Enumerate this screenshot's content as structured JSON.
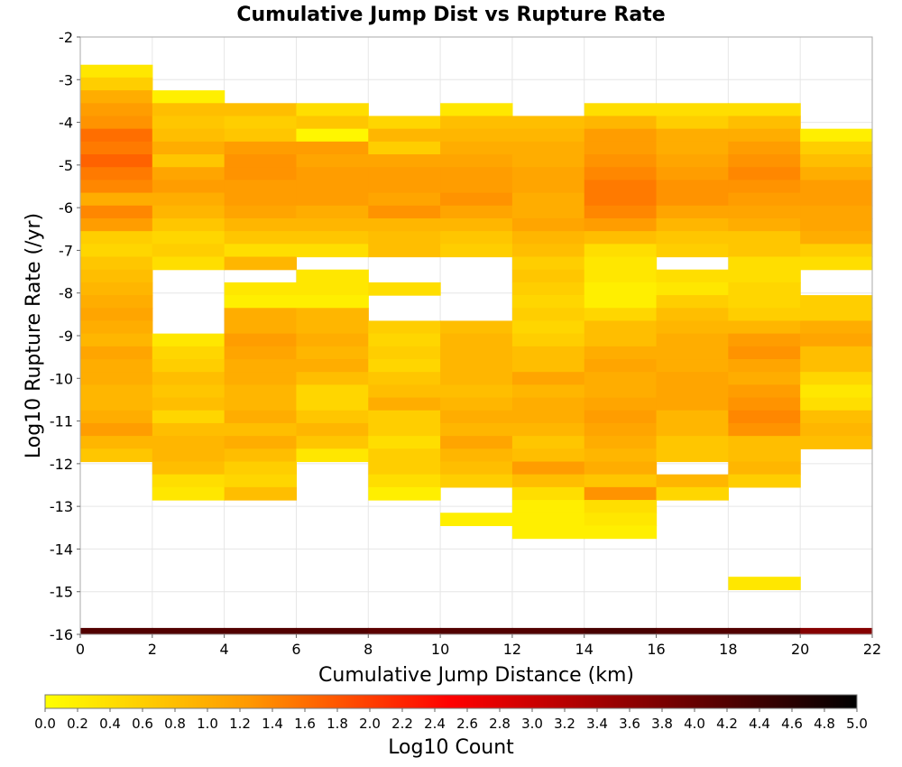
{
  "chart_data": {
    "type": "heatmap",
    "title": "Cumulative Jump Dist vs Rupture Rate",
    "xlabel": "Cumulative Jump Distance (km)",
    "ylabel": "Log10 Rupture Rate (/yr)",
    "colorbar_label": "Log10 Count",
    "xlim": [
      0,
      22
    ],
    "ylim": [
      -16,
      -2
    ],
    "x_ticks": [
      "0",
      "2",
      "4",
      "6",
      "8",
      "10",
      "12",
      "14",
      "16",
      "18",
      "20",
      "22"
    ],
    "y_ticks": [
      "-2",
      "-3",
      "-4",
      "-5",
      "-6",
      "-7",
      "-8",
      "-9",
      "-10",
      "-11",
      "-12",
      "-13",
      "-14",
      "-15",
      "-16"
    ],
    "colorbar_range": [
      0,
      5
    ],
    "colorbar_ticks": [
      "0.0",
      "0.2",
      "0.4",
      "0.6",
      "0.8",
      "1.0",
      "1.2",
      "1.4",
      "1.6",
      "1.8",
      "2.0",
      "2.2",
      "2.4",
      "2.6",
      "2.8",
      "3.0",
      "3.2",
      "3.4",
      "3.6",
      "3.8",
      "4.0",
      "4.2",
      "4.4",
      "4.6",
      "4.8",
      "5.0"
    ],
    "colormap": [
      "#ffff00",
      "#ff9900",
      "#ff0000",
      "#800000",
      "#000000"
    ],
    "grid": true,
    "x_bin_width": 2,
    "y_bin_width": 0.3,
    "columns": [
      {
        "x": 1,
        "y_top": -2.65,
        "values": [
          0.3,
          0.6,
          1.0,
          1.2,
          1.3,
          1.6,
          1.5,
          1.7,
          1.5,
          1.4,
          1.0,
          1.4,
          1.2,
          0.6,
          0.5,
          0.7,
          0.8,
          0.9,
          1.0,
          1.1,
          1.0,
          0.9,
          1.1,
          1.0,
          1.0,
          0.9,
          0.9,
          1.0,
          1.2,
          0.9,
          0.7
        ]
      },
      {
        "x": 3,
        "y_top": -3.25,
        "values": [
          0.2,
          0.8,
          0.7,
          0.8,
          1.0,
          0.7,
          1.1,
          1.2,
          1.0,
          0.9,
          0.7,
          0.5,
          0.6,
          0.4,
          null,
          null,
          null,
          null,
          null,
          0.3,
          0.5,
          0.6,
          0.8,
          0.7,
          0.8,
          0.5,
          0.8,
          0.9,
          0.9,
          0.8,
          0.4,
          0.3
        ]
      },
      {
        "x": 5,
        "y_top": -3.55,
        "values": [
          0.8,
          0.6,
          0.7,
          1.2,
          1.3,
          1.3,
          1.2,
          1.2,
          1.1,
          0.9,
          0.7,
          0.4,
          0.9,
          null,
          0.3,
          0.2,
          1.0,
          1.0,
          1.2,
          1.1,
          1.0,
          1.0,
          0.9,
          0.9,
          1.0,
          0.8,
          1.0,
          0.8,
          0.6,
          0.5,
          0.8
        ]
      },
      {
        "x": 7,
        "y_top": -3.55,
        "values": [
          0.4,
          0.7,
          0.1,
          1.2,
          1.1,
          1.2,
          1.2,
          1.2,
          1.0,
          0.9,
          0.7,
          0.4,
          null,
          0.3,
          0.3,
          0.2,
          0.9,
          0.9,
          1.0,
          0.9,
          1.0,
          0.8,
          0.5,
          0.5,
          0.7,
          0.9,
          0.7,
          0.3
        ]
      },
      {
        "x": 9,
        "y_top": -3.85,
        "values": [
          0.5,
          0.9,
          0.6,
          1.1,
          1.2,
          1.2,
          1.1,
          1.3,
          0.9,
          0.8,
          0.8,
          null,
          null,
          0.4,
          null,
          null,
          0.6,
          0.5,
          0.6,
          0.5,
          0.7,
          0.8,
          1.0,
          0.6,
          0.6,
          0.4,
          0.6,
          0.6,
          0.4,
          0.2
        ]
      },
      {
        "x": 11,
        "y_top": -3.55,
        "values": [
          0.3,
          0.8,
          0.9,
          1.0,
          1.1,
          1.2,
          1.2,
          1.3,
          1.1,
          0.9,
          0.7,
          0.6,
          null,
          null,
          null,
          null,
          null,
          0.8,
          0.9,
          0.9,
          0.9,
          0.9,
          0.8,
          0.9,
          1.0,
          0.9,
          1.1,
          0.9,
          0.8,
          0.6,
          null,
          null,
          0.2
        ]
      },
      {
        "x": 13,
        "y_top": -3.85,
        "values": [
          0.8,
          0.9,
          1.0,
          1.0,
          1.1,
          1.1,
          1.0,
          1.0,
          1.1,
          0.9,
          0.8,
          0.6,
          0.7,
          0.6,
          0.5,
          0.6,
          0.5,
          0.6,
          0.8,
          0.8,
          1.1,
          0.9,
          1.0,
          1.0,
          0.9,
          0.7,
          0.8,
          1.2,
          0.8,
          0.4,
          0.2,
          0.2,
          0.2
        ]
      },
      {
        "x": 15,
        "y_top": -3.55,
        "values": [
          0.4,
          0.9,
          1.2,
          1.2,
          1.3,
          1.4,
          1.5,
          1.5,
          1.4,
          1.2,
          0.8,
          0.4,
          0.3,
          0.3,
          0.2,
          0.2,
          0.5,
          0.8,
          0.8,
          1.0,
          1.1,
          1.0,
          1.0,
          1.1,
          1.2,
          1.1,
          1.0,
          0.9,
          1.0,
          0.7,
          1.3,
          0.4,
          0.3,
          0.2
        ]
      },
      {
        "x": 17,
        "y_top": -3.55,
        "values": [
          0.4,
          0.6,
          1.0,
          1.0,
          1.1,
          1.2,
          1.3,
          1.3,
          1.1,
          0.9,
          0.7,
          0.6,
          null,
          0.4,
          0.3,
          0.6,
          0.8,
          0.9,
          1.0,
          1.0,
          1.0,
          1.1,
          1.1,
          1.1,
          0.9,
          0.9,
          0.7,
          0.7,
          null,
          0.9,
          0.5
        ]
      },
      {
        "x": 19,
        "y_top": -3.55,
        "values": [
          0.4,
          0.8,
          1.0,
          1.2,
          1.3,
          1.4,
          1.3,
          1.2,
          1.1,
          1.0,
          0.7,
          0.7,
          0.4,
          0.4,
          0.5,
          0.5,
          0.6,
          0.9,
          1.2,
          1.3,
          1.1,
          1.0,
          1.2,
          1.3,
          1.4,
          1.3,
          0.8,
          0.8,
          0.9,
          0.6,
          null,
          null,
          null,
          null,
          null,
          null,
          null,
          0.3
        ]
      },
      {
        "x": 21,
        "y_top": -4.15,
        "values": [
          0.2,
          0.6,
          0.8,
          1.0,
          1.2,
          1.2,
          1.1,
          1.1,
          1.0,
          0.6,
          0.4,
          null,
          null,
          0.6,
          0.6,
          1.0,
          1.1,
          0.8,
          0.8,
          0.5,
          0.3,
          0.4,
          0.8,
          0.9,
          0.8
        ]
      }
    ],
    "bottom_row": {
      "y": -16,
      "values": [
        4.2,
        4.2,
        4.2,
        4.2,
        4.1,
        4.2,
        4.2,
        4.3,
        4.2,
        4.2,
        3.7
      ]
    }
  }
}
